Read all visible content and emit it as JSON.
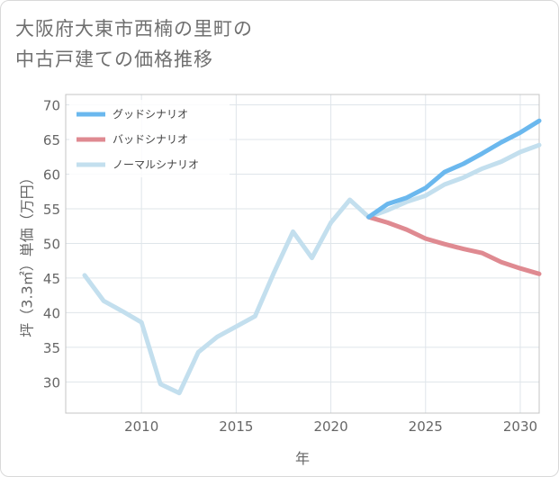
{
  "title_lines": [
    "大阪府大東市西楠の里町の",
    "中古戸建ての価格推移"
  ],
  "chart_data": {
    "type": "line",
    "title": "大阪府大東市西楠の里町の中古戸建ての価格推移",
    "xlabel": "年",
    "ylabel": "坪（3.3㎡）単価（万円）",
    "xlim": [
      2006,
      2031
    ],
    "ylim": [
      25.5,
      71.5
    ],
    "xticks": [
      2010,
      2015,
      2020,
      2025,
      2030
    ],
    "yticks": [
      30,
      35,
      40,
      45,
      50,
      55,
      60,
      65,
      70
    ],
    "grid": true,
    "legend_position": "top-left",
    "series": [
      {
        "name": "グッドシナリオ",
        "color": "#6bb8ee",
        "x": [
          2022,
          2023,
          2024,
          2025,
          2026,
          2027,
          2028,
          2029,
          2030,
          2031
        ],
        "y": [
          53.8,
          55.7,
          56.6,
          58.0,
          60.3,
          61.5,
          63.0,
          64.6,
          66.0,
          67.7
        ]
      },
      {
        "name": "バッドシナリオ",
        "color": "#df8a91",
        "x": [
          2022,
          2023,
          2024,
          2025,
          2026,
          2027,
          2028,
          2029,
          2030,
          2031
        ],
        "y": [
          53.8,
          53.0,
          52.0,
          50.7,
          49.9,
          49.2,
          48.6,
          47.3,
          46.4,
          45.6
        ]
      },
      {
        "name": "ノーマルシナリオ",
        "color": "#c3dfee",
        "x": [
          2007,
          2008,
          2009,
          2010,
          2011,
          2012,
          2013,
          2014,
          2015,
          2016,
          2017,
          2018,
          2019,
          2020,
          2021,
          2022,
          2023,
          2024,
          2025,
          2026,
          2027,
          2028,
          2029,
          2030,
          2031
        ],
        "y": [
          45.4,
          41.7,
          40.2,
          38.6,
          29.7,
          28.4,
          34.3,
          36.5,
          38.0,
          39.5,
          45.8,
          51.7,
          47.9,
          53.0,
          56.3,
          53.8,
          54.8,
          56.0,
          56.9,
          58.5,
          59.5,
          60.8,
          61.8,
          63.2,
          64.2
        ]
      }
    ]
  }
}
